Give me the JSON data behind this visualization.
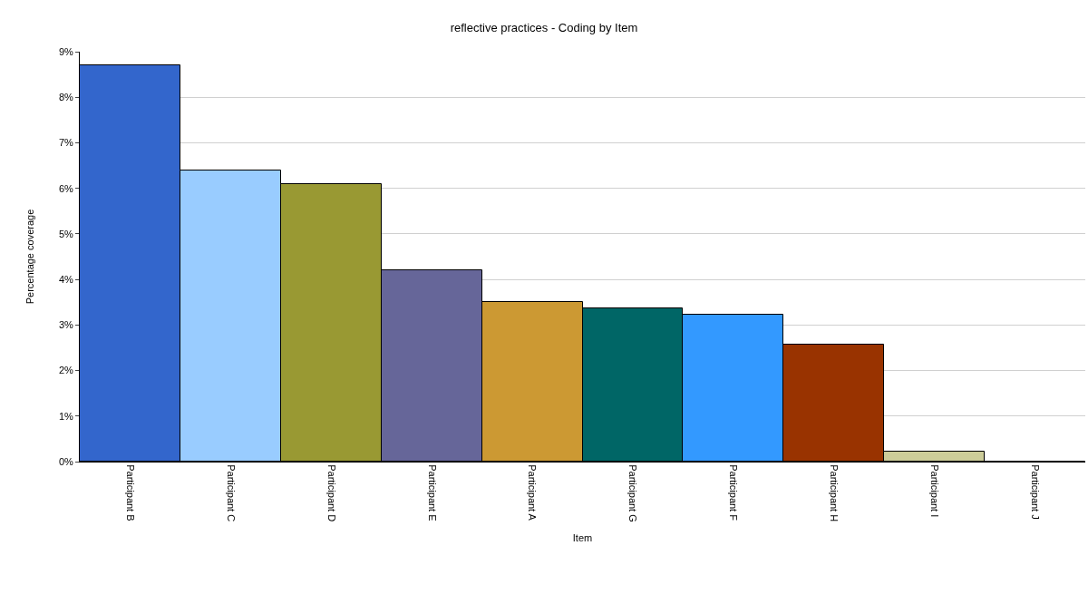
{
  "chart_data": {
    "type": "bar",
    "title": "reflective practices - Coding by Item",
    "xlabel": "Item",
    "ylabel": "Percentage coverage",
    "categories": [
      "Participant B",
      "Participant C",
      "Participant D",
      "Participant E",
      "Participant A",
      "Participant G",
      "Participant F",
      "Participant H",
      "Participant I",
      "Participant J"
    ],
    "values": [
      8.7,
      6.4,
      6.1,
      4.2,
      3.5,
      3.37,
      3.23,
      2.57,
      0.22,
      0
    ],
    "colors": [
      "#3366cc",
      "#99ccff",
      "#999933",
      "#666699",
      "#cc9933",
      "#006666",
      "#3399ff",
      "#993300",
      "#cccc99",
      "#000000"
    ],
    "ylim": [
      0,
      9
    ],
    "yticks": [
      {
        "value": 0,
        "label": "0%"
      },
      {
        "value": 1,
        "label": "1%"
      },
      {
        "value": 2,
        "label": "2%"
      },
      {
        "value": 3,
        "label": "3%"
      },
      {
        "value": 4,
        "label": "4%"
      },
      {
        "value": 5,
        "label": "5%"
      },
      {
        "value": 6,
        "label": "6%"
      },
      {
        "value": 7,
        "label": "7%"
      },
      {
        "value": 8,
        "label": "8%"
      },
      {
        "value": 9,
        "label": "9%"
      }
    ],
    "grid": "y",
    "legend": false
  }
}
